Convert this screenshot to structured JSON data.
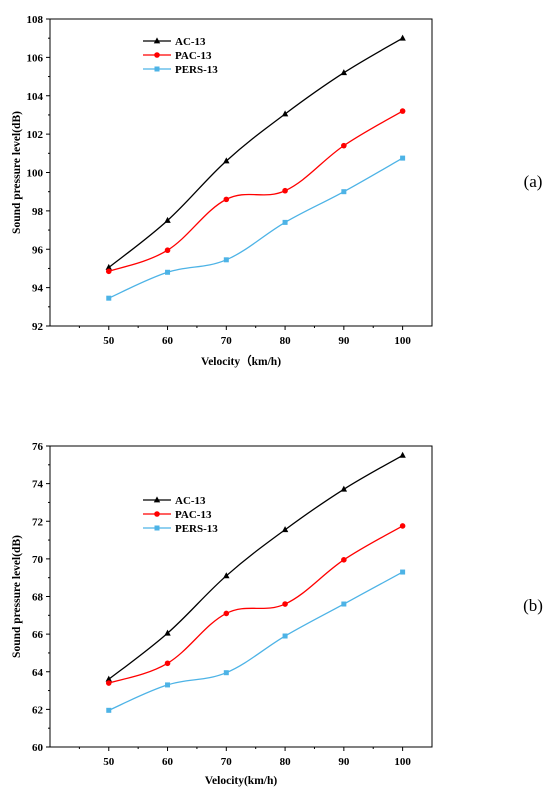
{
  "chart_data": [
    {
      "type": "line",
      "panel_label": "(a)",
      "xlabel": "Velocity（km/h)",
      "ylabel": "Sound pressure level(dB)",
      "x": [
        50,
        60,
        70,
        80,
        90,
        100
      ],
      "xlim": [
        40,
        105
      ],
      "ylim": [
        92,
        108
      ],
      "xticks": [
        50,
        60,
        70,
        80,
        90,
        100
      ],
      "yticks": [
        92,
        94,
        96,
        98,
        100,
        102,
        104,
        106,
        108
      ],
      "grid": false,
      "legend_position": "top-left",
      "series": [
        {
          "name": "AC-13",
          "color": "#000000",
          "marker": "triangle",
          "values": [
            95.05,
            97.5,
            100.6,
            103.05,
            105.2,
            107.0
          ]
        },
        {
          "name": "PAC-13",
          "color": "#ff0000",
          "marker": "circle",
          "values": [
            94.85,
            95.95,
            98.6,
            99.05,
            101.4,
            103.2
          ]
        },
        {
          "name": "PERS-13",
          "color": "#4db3e6",
          "marker": "square",
          "values": [
            93.45,
            94.8,
            95.45,
            97.4,
            99.0,
            100.75
          ]
        }
      ]
    },
    {
      "type": "line",
      "panel_label": "(b)",
      "xlabel": "Velocity(km/h)",
      "ylabel": "Sound pressure level(dB)",
      "x": [
        50,
        60,
        70,
        80,
        90,
        100
      ],
      "xlim": [
        40,
        105
      ],
      "ylim": [
        60,
        76
      ],
      "xticks": [
        50,
        60,
        70,
        80,
        90,
        100
      ],
      "yticks": [
        60,
        62,
        64,
        66,
        68,
        70,
        72,
        74,
        76
      ],
      "grid": false,
      "legend_position": "top-left",
      "series": [
        {
          "name": "AC-13",
          "color": "#000000",
          "marker": "triangle",
          "values": [
            63.6,
            66.05,
            69.1,
            71.55,
            73.7,
            75.5
          ]
        },
        {
          "name": "PAC-13",
          "color": "#ff0000",
          "marker": "circle",
          "values": [
            63.4,
            64.45,
            67.1,
            67.6,
            69.95,
            71.75
          ]
        },
        {
          "name": "PERS-13",
          "color": "#4db3e6",
          "marker": "square",
          "values": [
            61.95,
            63.3,
            63.95,
            65.9,
            67.6,
            69.3
          ]
        }
      ]
    }
  ]
}
